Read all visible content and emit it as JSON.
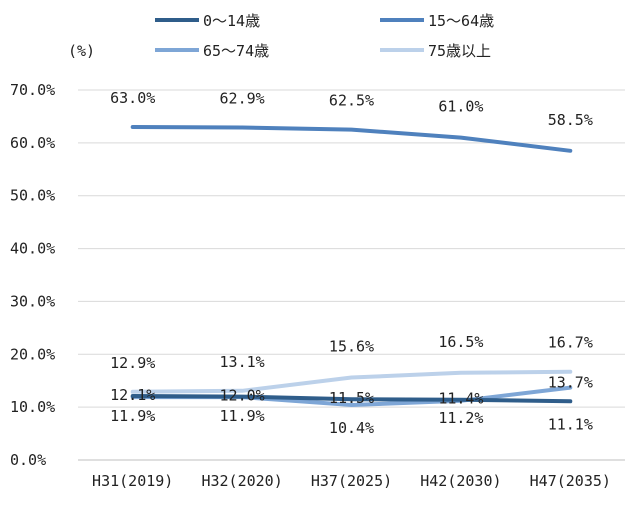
{
  "chart_data": {
    "type": "line",
    "title": "",
    "xlabel": "",
    "ylabel": "",
    "y_unit": "(%)",
    "categories": [
      "H31(2019)",
      "H32(2020)",
      "H37(2025)",
      "H42(2030)",
      "H47(2035)"
    ],
    "ylim": [
      0,
      70
    ],
    "y_ticks": [
      "0.0%",
      "10.0%",
      "20.0%",
      "30.0%",
      "40.0%",
      "50.0%",
      "60.0%",
      "70.0%"
    ],
    "grid": true,
    "legend_position": "top",
    "series": [
      {
        "name": "0～14歳",
        "color": "#2f5d8a",
        "values": [
          12.1,
          12.0,
          11.5,
          11.4,
          11.1
        ],
        "labels": [
          "12.1%",
          "12.0%",
          "11.5%",
          "11.4%",
          "11.1%"
        ]
      },
      {
        "name": "15～64歳",
        "color": "#4f81bd",
        "values": [
          63.0,
          62.9,
          62.5,
          61.0,
          58.5
        ],
        "labels": [
          "63.0%",
          "62.9%",
          "62.5%",
          "61.0%",
          "58.5%"
        ]
      },
      {
        "name": "65～74歳",
        "color": "#7ea6d6",
        "values": [
          11.9,
          11.9,
          10.4,
          11.2,
          13.7
        ],
        "labels": [
          "11.9%",
          "11.9%",
          "10.4%",
          "11.2%",
          "13.7%"
        ]
      },
      {
        "name": "75歳以上",
        "color": "#bcd1ea",
        "values": [
          12.9,
          13.1,
          15.6,
          16.5,
          16.7
        ],
        "labels": [
          "12.9%",
          "13.1%",
          "15.6%",
          "16.5%",
          "16.7%"
        ]
      }
    ]
  }
}
